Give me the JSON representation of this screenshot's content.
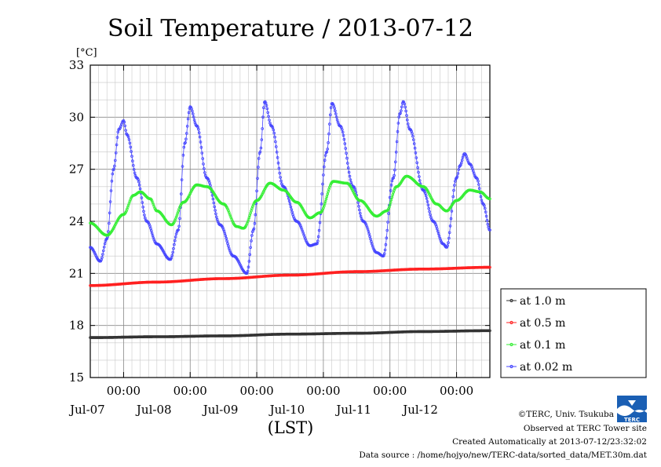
{
  "chart_data": {
    "type": "line",
    "title": "Soil Temperature / 2013-07-12",
    "ylabel": "[°C]",
    "xlabel": "(LST)",
    "ylim": [
      15,
      33
    ],
    "yticks": [
      15,
      18,
      21,
      24,
      27,
      30,
      33
    ],
    "xlim": [
      0,
      6
    ],
    "x_unit": "days since Jul-06 12:00 (LST)",
    "xticks": [
      {
        "x": 0.5,
        "time": "00:00",
        "date": "Jul-07"
      },
      {
        "x": 1.5,
        "time": "00:00",
        "date": "Jul-08"
      },
      {
        "x": 2.5,
        "time": "00:00",
        "date": "Jul-09"
      },
      {
        "x": 3.5,
        "time": "00:00",
        "date": "Jul-10"
      },
      {
        "x": 4.5,
        "time": "00:00",
        "date": "Jul-11"
      },
      {
        "x": 5.5,
        "time": "00:00",
        "date": "Jul-12"
      }
    ],
    "grid": true,
    "legend_position": "right",
    "series": [
      {
        "name": "at 1.0 m",
        "color": "#333333",
        "points": [
          [
            0,
            17.3
          ],
          [
            1,
            17.35
          ],
          [
            2,
            17.4
          ],
          [
            3,
            17.5
          ],
          [
            4,
            17.55
          ],
          [
            5,
            17.65
          ],
          [
            6,
            17.7
          ]
        ]
      },
      {
        "name": "at 0.5 m",
        "color": "#ff2020",
        "points": [
          [
            0,
            20.3
          ],
          [
            1,
            20.5
          ],
          [
            2,
            20.7
          ],
          [
            3,
            20.9
          ],
          [
            4,
            21.1
          ],
          [
            5,
            21.25
          ],
          [
            6,
            21.35
          ]
        ]
      },
      {
        "name": "at 0.1 m",
        "color": "#33ee33",
        "points": [
          [
            0,
            23.9
          ],
          [
            0.25,
            23.2
          ],
          [
            0.5,
            24.4
          ],
          [
            0.65,
            25.5
          ],
          [
            0.75,
            25.7
          ],
          [
            0.9,
            25.3
          ],
          [
            1.0,
            24.6
          ],
          [
            1.22,
            23.8
          ],
          [
            1.4,
            25.1
          ],
          [
            1.6,
            26.1
          ],
          [
            1.75,
            26.0
          ],
          [
            2.0,
            25.0
          ],
          [
            2.2,
            23.7
          ],
          [
            2.3,
            23.6
          ],
          [
            2.5,
            25.2
          ],
          [
            2.7,
            26.2
          ],
          [
            2.9,
            25.8
          ],
          [
            3.1,
            25.1
          ],
          [
            3.3,
            24.2
          ],
          [
            3.45,
            24.5
          ],
          [
            3.65,
            26.3
          ],
          [
            3.85,
            26.2
          ],
          [
            4.05,
            25.2
          ],
          [
            4.3,
            24.3
          ],
          [
            4.45,
            24.6
          ],
          [
            4.6,
            26.0
          ],
          [
            4.75,
            26.6
          ],
          [
            5.0,
            26.0
          ],
          [
            5.2,
            25.0
          ],
          [
            5.35,
            24.6
          ],
          [
            5.5,
            25.2
          ],
          [
            5.7,
            25.8
          ],
          [
            5.85,
            25.7
          ],
          [
            6.0,
            25.3
          ]
        ]
      },
      {
        "name": "at 0.02 m",
        "color": "#4444ff",
        "points": [
          [
            0,
            22.5
          ],
          [
            0.15,
            21.7
          ],
          [
            0.25,
            23.0
          ],
          [
            0.35,
            27.0
          ],
          [
            0.43,
            29.3
          ],
          [
            0.5,
            29.8
          ],
          [
            0.55,
            29.0
          ],
          [
            0.7,
            26.5
          ],
          [
            0.85,
            24.0
          ],
          [
            1.0,
            22.7
          ],
          [
            1.2,
            21.8
          ],
          [
            1.32,
            23.5
          ],
          [
            1.42,
            28.5
          ],
          [
            1.5,
            30.6
          ],
          [
            1.6,
            29.5
          ],
          [
            1.75,
            26.5
          ],
          [
            1.95,
            23.8
          ],
          [
            2.15,
            22.0
          ],
          [
            2.35,
            21.0
          ],
          [
            2.45,
            23.5
          ],
          [
            2.55,
            28.0
          ],
          [
            2.62,
            30.9
          ],
          [
            2.72,
            29.5
          ],
          [
            2.9,
            26.0
          ],
          [
            3.1,
            24.0
          ],
          [
            3.3,
            22.6
          ],
          [
            3.4,
            22.7
          ],
          [
            3.55,
            28.0
          ],
          [
            3.63,
            30.8
          ],
          [
            3.75,
            29.5
          ],
          [
            3.95,
            26.0
          ],
          [
            4.1,
            24.0
          ],
          [
            4.3,
            22.2
          ],
          [
            4.4,
            22.0
          ],
          [
            4.55,
            26.5
          ],
          [
            4.65,
            30.2
          ],
          [
            4.7,
            30.9
          ],
          [
            4.8,
            29.3
          ],
          [
            5.0,
            25.8
          ],
          [
            5.15,
            24.0
          ],
          [
            5.3,
            22.7
          ],
          [
            5.35,
            22.5
          ],
          [
            5.5,
            26.5
          ],
          [
            5.55,
            27.2
          ],
          [
            5.62,
            27.9
          ],
          [
            5.7,
            27.3
          ],
          [
            5.8,
            26.5
          ],
          [
            5.9,
            25.0
          ],
          [
            6.0,
            23.5
          ]
        ]
      }
    ]
  },
  "footer": {
    "copyright": "©TERC, Univ. Tsukuba",
    "observed": "Observed at TERC Tower site",
    "created": "Created Automatically at 2013-07-12/23:32:02",
    "source": "Data source : /home/hojyo/new/TERC-data/sorted_data/MET.30m.dat"
  },
  "logo": {
    "icon": "terc-logo-icon",
    "text": "TERC",
    "color": "#1a5fb4"
  }
}
